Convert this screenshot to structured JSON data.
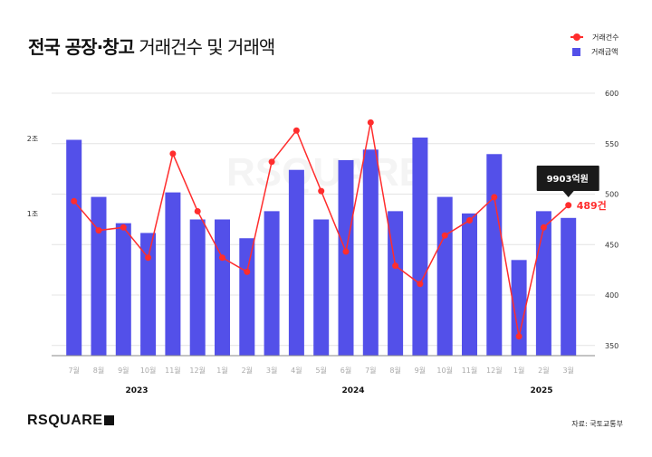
{
  "title": {
    "bold": "전국 공장·창고",
    "light": "거래건수 및 거래액"
  },
  "legend": {
    "line_label": "거래건수",
    "bar_label": "거래금액"
  },
  "watermark": "RSQUARE",
  "footer": {
    "logo": "RSQUARE",
    "source": "자료: 국토교통부"
  },
  "colors": {
    "bar": "#5350e9",
    "line": "#ff2d2d",
    "tooltip_bg": "#1a1a1a"
  },
  "chart_data": {
    "type": "bar+line",
    "categories": [
      "7월",
      "8월",
      "9월",
      "10월",
      "11월",
      "12월",
      "1월",
      "2월",
      "3월",
      "4월",
      "5월",
      "6월",
      "7월",
      "8월",
      "9월",
      "10월",
      "11월",
      "12월",
      "1월",
      "2월",
      "3월"
    ],
    "year_labels": [
      {
        "label": "2023",
        "at": "10월~11월"
      },
      {
        "label": "2024",
        "at": "7월"
      },
      {
        "label": "2025",
        "at": "2월"
      }
    ],
    "series": [
      {
        "name": "거래금액",
        "type": "bar",
        "axis": "left",
        "unit": "억원",
        "values": [
          20300,
          12700,
          9200,
          7900,
          13300,
          9700,
          9700,
          7200,
          10800,
          16300,
          9700,
          17600,
          19000,
          10800,
          20600,
          12700,
          10500,
          18400,
          4300,
          10800,
          9903
        ]
      },
      {
        "name": "거래건수",
        "type": "line",
        "axis": "right",
        "unit": "건",
        "values": [
          493,
          464,
          467,
          437,
          540,
          483,
          437,
          423,
          532,
          563,
          503,
          443,
          571,
          429,
          411,
          459,
          474,
          497,
          359,
          467,
          489
        ]
      }
    ],
    "left_axis": {
      "ticks": [
        {
          "value": 10000,
          "label": "1조"
        },
        {
          "value": 20000,
          "label": "2조"
        }
      ]
    },
    "right_axis": {
      "range": [
        340,
        600
      ],
      "ticks": [
        350,
        400,
        450,
        500,
        550,
        600
      ]
    },
    "grid": true,
    "legend_position": "top-right",
    "annotation": {
      "tooltip": "9903억원",
      "point_label": "489건"
    }
  }
}
